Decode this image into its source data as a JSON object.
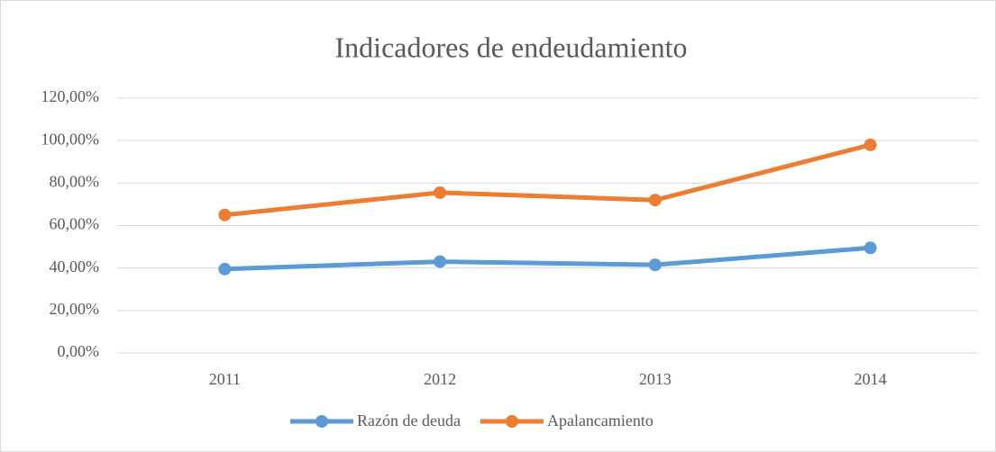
{
  "chart_data": {
    "type": "line",
    "title": "Indicadores de endeudamiento",
    "categories": [
      "2011",
      "2012",
      "2013",
      "2014"
    ],
    "series": [
      {
        "name": "Razón de deuda",
        "color": "#5b9bd5",
        "values": [
          39.5,
          43,
          41.5,
          49.5
        ]
      },
      {
        "name": "Apalancamiento",
        "color": "#ed7d31",
        "values": [
          65,
          75.5,
          72,
          98
        ]
      }
    ],
    "ylim": [
      0,
      120
    ],
    "yticks": [
      {
        "value": 0,
        "label": "0,00%"
      },
      {
        "value": 20,
        "label": "20,00%"
      },
      {
        "value": 40,
        "label": "40,00%"
      },
      {
        "value": 60,
        "label": "60,00%"
      },
      {
        "value": 80,
        "label": "80,00%"
      },
      {
        "value": 100,
        "label": "100,00%"
      },
      {
        "value": 120,
        "label": "120,00%"
      }
    ],
    "grid": true,
    "legend": "bottom"
  }
}
